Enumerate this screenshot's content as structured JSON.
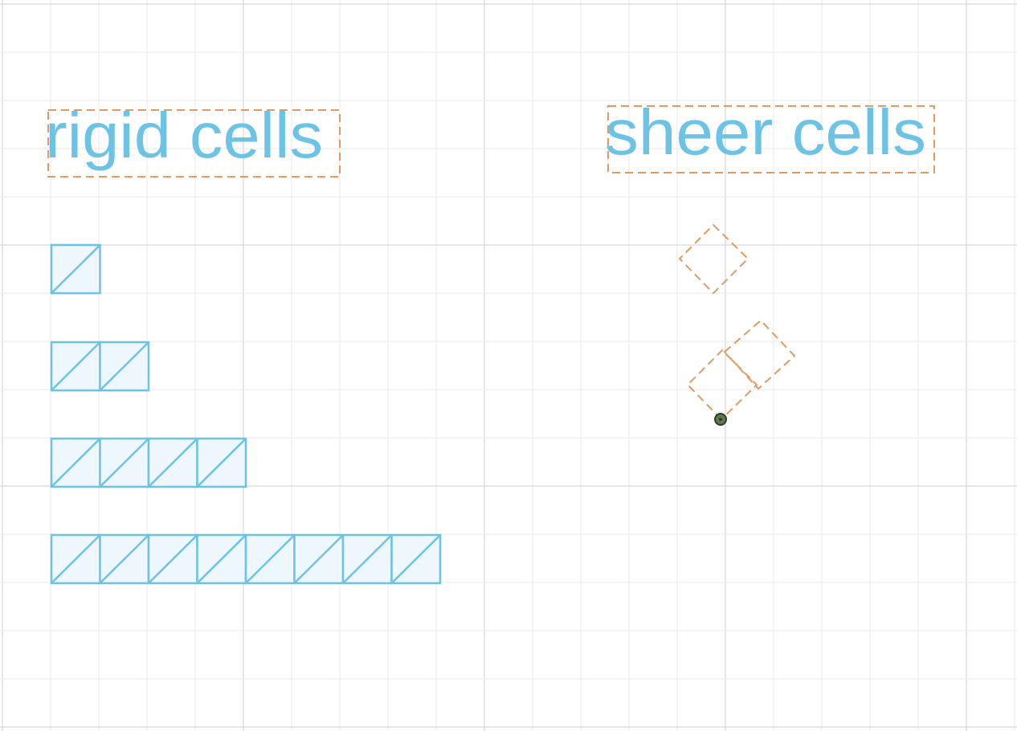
{
  "colors": {
    "background": "#ffffff",
    "grid_minor": "#e8e8e8",
    "grid_major": "#cfcfcf",
    "rigid_stroke": "#6cc3e6",
    "rigid_fill": "#eef7fd",
    "label_text": "#6cc3e6",
    "sheer_stroke": "#e09a62",
    "anchor_fill": "#5e7a4e",
    "anchor_stroke": "#2f3a2a"
  },
  "labels": {
    "rigid": "rigid cells",
    "sheer": "sheer cells"
  },
  "rigid_rows": [
    {
      "cells": 1
    },
    {
      "cells": 2
    },
    {
      "cells": 4
    },
    {
      "cells": 8
    }
  ],
  "sheer_groups": [
    {
      "cells": 1,
      "rotation_deg": 45
    },
    {
      "cells": 2,
      "rotation_deg": 45,
      "has_anchor": true
    }
  ]
}
